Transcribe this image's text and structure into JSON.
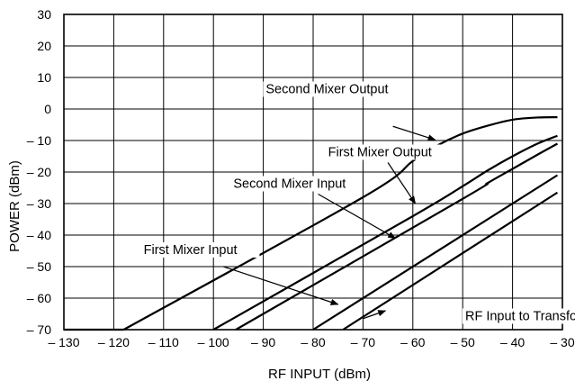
{
  "chart_data": {
    "type": "line",
    "title": "",
    "xlabel": "RF INPUT (dBm)",
    "ylabel": "POWER (dBm)",
    "xlim": [
      -130,
      -30
    ],
    "ylim": [
      -70,
      30
    ],
    "grid": true,
    "x_ticks": [
      -130,
      -120,
      -110,
      -100,
      -90,
      -80,
      -70,
      -60,
      -50,
      -40,
      -30
    ],
    "x_tick_labels": [
      "– 130",
      "– 120",
      "– 110",
      "– 100",
      "– 90",
      "– 80",
      "– 70",
      "– 60",
      "– 50",
      "– 40",
      "– 30"
    ],
    "y_ticks": [
      30,
      20,
      10,
      0,
      -10,
      -20,
      -30,
      -40,
      -50,
      -60,
      -70
    ],
    "y_tick_labels": [
      "30",
      "20",
      "10",
      "0",
      "– 10",
      "– 20",
      "– 30",
      "– 40",
      "– 50",
      "– 60",
      "– 70"
    ],
    "series": [
      {
        "name": "Second Mixer Output",
        "points": [
          [
            -118,
            -70
          ],
          [
            -70,
            -28
          ],
          [
            -60,
            -16.5
          ],
          [
            -55,
            -11.5
          ],
          [
            -50,
            -7.8
          ],
          [
            -45,
            -5.3
          ],
          [
            -40,
            -3.4
          ],
          [
            -35,
            -2.7
          ],
          [
            -31,
            -2.6
          ]
        ]
      },
      {
        "name": "First Mixer Output",
        "points": [
          [
            -100,
            -70
          ],
          [
            -60,
            -34
          ],
          [
            -50,
            -24.5
          ],
          [
            -45,
            -19.5
          ],
          [
            -40,
            -15
          ],
          [
            -35,
            -11
          ],
          [
            -31,
            -8.5
          ]
        ]
      },
      {
        "name": "Second Mixer Input",
        "points": [
          [
            -95.5,
            -70
          ],
          [
            -50,
            -28.5
          ],
          [
            -45,
            -23.5
          ],
          [
            -40,
            -19
          ],
          [
            -35,
            -14.5
          ],
          [
            -31,
            -11
          ]
        ]
      },
      {
        "name": "First Mixer Input",
        "points": [
          [
            -80,
            -70
          ],
          [
            -31,
            -21
          ]
        ]
      },
      {
        "name": "RF Input to Transformer",
        "points": [
          [
            -74,
            -70
          ],
          [
            -31,
            -26.5
          ]
        ]
      }
    ],
    "baseline": {
      "from": -130,
      "to": -118,
      "y": -70
    },
    "annotations": [
      {
        "text": "Second Mixer Output",
        "label_x": -89.5,
        "label_y": 5,
        "arrow_from": [
          -64,
          -5.5
        ],
        "arrow_to": [
          -55.5,
          -9.8
        ]
      },
      {
        "text": "First Mixer Output",
        "label_x": -77,
        "label_y": -15,
        "arrow_from": [
          -65,
          -17
        ],
        "arrow_to": [
          -59.5,
          -30
        ]
      },
      {
        "text": "Second Mixer Input",
        "label_x": -96,
        "label_y": -25,
        "arrow_from": [
          -79,
          -27
        ],
        "arrow_to": [
          -63.5,
          -41
        ]
      },
      {
        "text": "First Mixer Input",
        "label_x": -114,
        "label_y": -46,
        "arrow_from": [
          -98,
          -50
        ],
        "arrow_to": [
          -75,
          -62
        ]
      },
      {
        "text": "RF Input to Transformer",
        "label_x": -49.5,
        "label_y": -67,
        "arrow_from": [
          -70,
          -66.5
        ],
        "arrow_to": [
          -65.5,
          -64
        ]
      }
    ]
  }
}
